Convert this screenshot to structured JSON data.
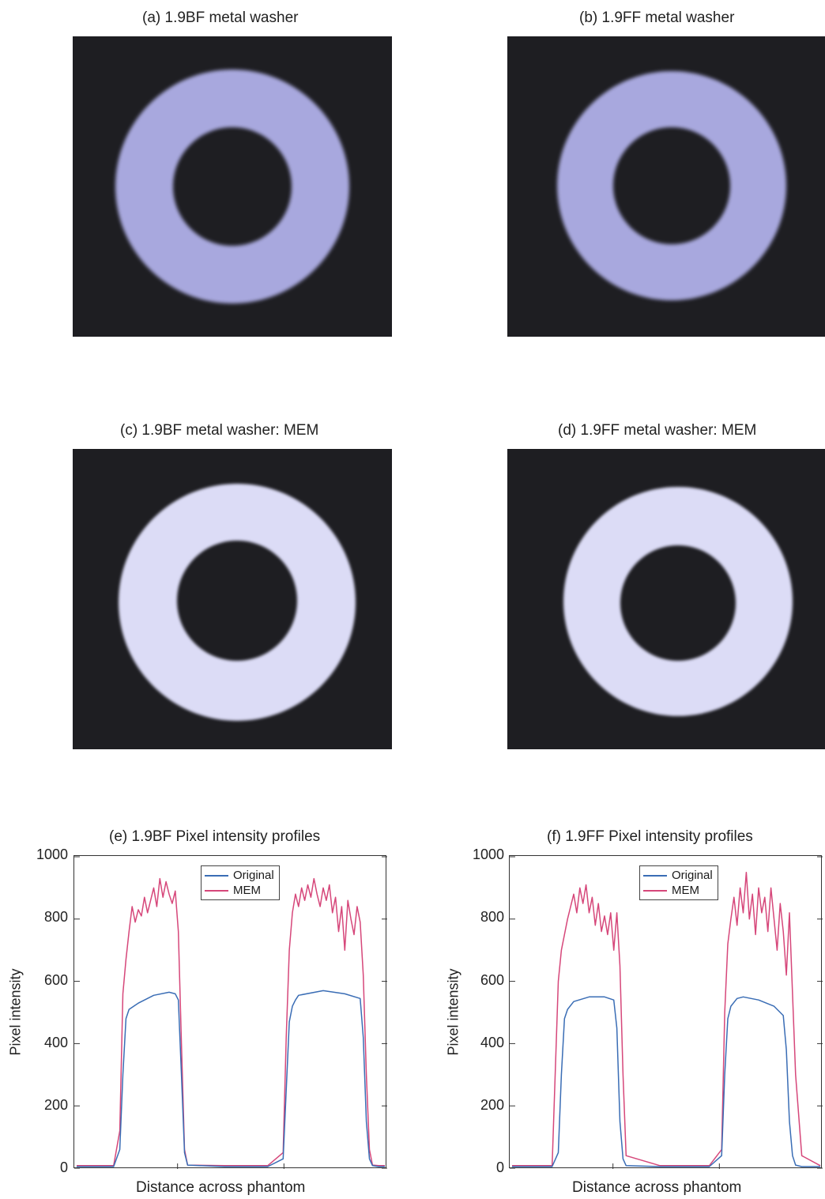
{
  "panels": {
    "a": {
      "title": "(a) 1.9BF metal washer"
    },
    "b": {
      "title": "(b) 1.9FF metal washer"
    },
    "c": {
      "title": "(c) 1.9BF metal washer: MEM"
    },
    "d": {
      "title": "(d) 1.9FF metal washer: MEM"
    }
  },
  "colors": {
    "original": "#3a6db5",
    "mem": "#d6477a",
    "washer": "#a8a8de",
    "washer_mem": "#dcdcf6",
    "background": "#1e1e22"
  },
  "chart_data": [
    {
      "type": "line",
      "title": "(e) 1.9BF  Pixel intensity profiles",
      "xlabel": "Distance across phantom",
      "ylabel": "Pixel intensity",
      "ylim": [
        0,
        1000
      ],
      "yticks": [
        "0",
        "200",
        "400",
        "600",
        "800",
        "1000"
      ],
      "legend": "top-center",
      "grid": false,
      "series": [
        {
          "name": "Original",
          "x": [
            0,
            12,
            14,
            15,
            16,
            17,
            20,
            25,
            30,
            32,
            33,
            34,
            35,
            36,
            48,
            62,
            67,
            68,
            69,
            70,
            71,
            72,
            80,
            87,
            92,
            93,
            94,
            95,
            96,
            98,
            100
          ],
          "y": [
            5,
            5,
            60,
            300,
            480,
            510,
            530,
            555,
            565,
            560,
            540,
            300,
            50,
            10,
            5,
            5,
            30,
            250,
            470,
            520,
            540,
            555,
            570,
            560,
            545,
            420,
            150,
            30,
            8,
            5,
            5
          ]
        },
        {
          "name": "MEM",
          "x": [
            0,
            12,
            14,
            15,
            16,
            17,
            18,
            19,
            20,
            21,
            22,
            23,
            24,
            25,
            26,
            27,
            28,
            29,
            30,
            31,
            32,
            33,
            34,
            35,
            36,
            48,
            62,
            67,
            68,
            69,
            70,
            71,
            72,
            73,
            74,
            75,
            76,
            77,
            78,
            79,
            80,
            81,
            82,
            83,
            84,
            85,
            86,
            87,
            88,
            89,
            90,
            91,
            92,
            93,
            94,
            95,
            96,
            98,
            100
          ],
          "y": [
            8,
            8,
            120,
            560,
            670,
            760,
            840,
            790,
            830,
            810,
            870,
            820,
            860,
            900,
            840,
            930,
            870,
            920,
            880,
            850,
            890,
            760,
            400,
            60,
            10,
            8,
            8,
            50,
            420,
            700,
            820,
            880,
            840,
            900,
            860,
            910,
            870,
            930,
            880,
            840,
            900,
            860,
            910,
            820,
            870,
            760,
            840,
            700,
            860,
            800,
            750,
            840,
            790,
            620,
            300,
            60,
            10,
            8,
            8
          ]
        }
      ]
    },
    {
      "type": "line",
      "title": "(f) 1.9FF  Pixel intensity profiles",
      "xlabel": "Distance across phantom",
      "ylabel": "Pixel intensity",
      "ylim": [
        0,
        1000
      ],
      "yticks": [
        "0",
        "200",
        "400",
        "600",
        "800",
        "1000"
      ],
      "legend": "top-center",
      "grid": false,
      "series": [
        {
          "name": "Original",
          "x": [
            0,
            13,
            15,
            16,
            17,
            18,
            20,
            25,
            30,
            33,
            34,
            35,
            36,
            37,
            48,
            64,
            68,
            69,
            70,
            71,
            73,
            75,
            80,
            85,
            88,
            89,
            90,
            91,
            92,
            94,
            100
          ],
          "y": [
            5,
            5,
            50,
            300,
            480,
            510,
            535,
            550,
            550,
            540,
            450,
            150,
            30,
            8,
            5,
            5,
            40,
            300,
            480,
            520,
            545,
            550,
            540,
            520,
            490,
            380,
            150,
            40,
            10,
            5,
            5
          ]
        },
        {
          "name": "MEM",
          "x": [
            0,
            13,
            15,
            16,
            17,
            18,
            19,
            20,
            21,
            22,
            23,
            24,
            25,
            26,
            27,
            28,
            29,
            30,
            31,
            32,
            33,
            34,
            35,
            36,
            37,
            48,
            64,
            68,
            69,
            70,
            71,
            72,
            73,
            74,
            75,
            76,
            77,
            78,
            79,
            80,
            81,
            82,
            83,
            84,
            85,
            86,
            87,
            88,
            89,
            90,
            91,
            92,
            94,
            100
          ],
          "y": [
            8,
            8,
            600,
            700,
            750,
            800,
            840,
            880,
            820,
            900,
            850,
            910,
            820,
            870,
            780,
            850,
            760,
            810,
            750,
            820,
            700,
            820,
            650,
            300,
            40,
            8,
            8,
            60,
            500,
            720,
            800,
            870,
            780,
            900,
            820,
            950,
            800,
            880,
            750,
            900,
            820,
            870,
            760,
            900,
            800,
            700,
            850,
            760,
            620,
            820,
            560,
            300,
            40,
            8
          ]
        }
      ]
    }
  ]
}
